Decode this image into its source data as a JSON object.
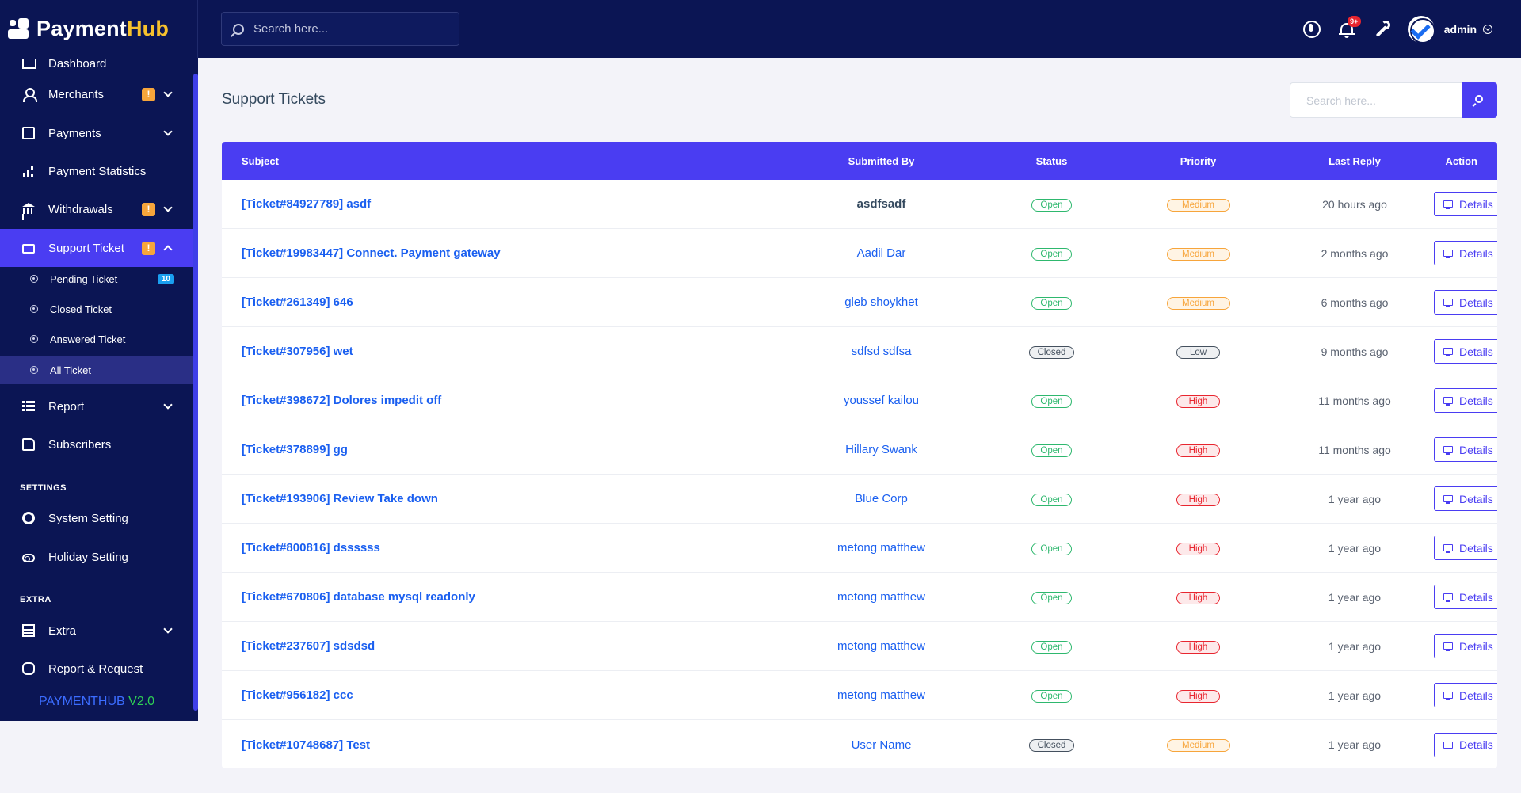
{
  "brand": {
    "name_part1": "Payment",
    "name_part2": "Hub"
  },
  "topbar": {
    "search_placeholder": "Search here...",
    "notification_badge": "9+",
    "admin_name": "admin"
  },
  "sidebar": {
    "items": [
      {
        "label": "Dashboard",
        "icon": "dashboard-icon"
      },
      {
        "label": "Merchants",
        "icon": "person-icon",
        "warn": "!"
      },
      {
        "label": "Payments",
        "icon": "document-icon"
      },
      {
        "label": "Payment Statistics",
        "icon": "bar-chart-icon"
      },
      {
        "label": "Withdrawals",
        "icon": "bank-icon",
        "warn": "!"
      },
      {
        "label": "Support Ticket",
        "icon": "ticket-icon",
        "warn": "!"
      }
    ],
    "sub_items": [
      {
        "label": "Pending Ticket",
        "count": "10"
      },
      {
        "label": "Closed Ticket"
      },
      {
        "label": "Answered Ticket"
      },
      {
        "label": "All Ticket"
      }
    ],
    "items2": [
      {
        "label": "Report",
        "icon": "list-icon"
      },
      {
        "label": "Subscribers",
        "icon": "thumbs-up-icon"
      }
    ],
    "section_settings": "SETTINGS",
    "settings_items": [
      {
        "label": "System Setting",
        "icon": "gear-icon"
      },
      {
        "label": "Holiday Setting",
        "icon": "toggle-icon"
      }
    ],
    "section_extra": "EXTRA",
    "extra_items": [
      {
        "label": "Extra",
        "icon": "table-icon"
      },
      {
        "label": "Report & Request",
        "icon": "bug-icon"
      }
    ],
    "version_name": "PAYMENTHUB",
    "version_number": "V2.0"
  },
  "main": {
    "title": "Support Tickets",
    "search_placeholder": "Search here...",
    "columns": [
      "Subject",
      "Submitted By",
      "Status",
      "Priority",
      "Last Reply",
      "Action"
    ],
    "rows": [
      {
        "subject": "[Ticket#84927789] asdf",
        "by": "asdfsadf",
        "status": "Open",
        "priority": "Medium",
        "last_reply": "20 hours ago",
        "action": "Details"
      },
      {
        "subject": "[Ticket#19983447] Connect. Payment gateway",
        "by": "Aadil Dar",
        "status": "Open",
        "priority": "Medium",
        "last_reply": "2 months ago",
        "action": "Details"
      },
      {
        "subject": "[Ticket#261349] 646",
        "by": "gleb shoykhet",
        "status": "Open",
        "priority": "Medium",
        "last_reply": "6 months ago",
        "action": "Details"
      },
      {
        "subject": "[Ticket#307956] wet",
        "by": "sdfsd sdfsa",
        "status": "Closed",
        "priority": "Low",
        "last_reply": "9 months ago",
        "action": "Details"
      },
      {
        "subject": "[Ticket#398672] Dolores impedit off",
        "by": "youssef kailou",
        "status": "Open",
        "priority": "High",
        "last_reply": "11 months ago",
        "action": "Details"
      },
      {
        "subject": "[Ticket#378899] gg",
        "by": "Hillary Swank",
        "status": "Open",
        "priority": "High",
        "last_reply": "11 months ago",
        "action": "Details"
      },
      {
        "subject": "[Ticket#193906] Review Take down",
        "by": "Blue Corp",
        "status": "Open",
        "priority": "High",
        "last_reply": "1 year ago",
        "action": "Details"
      },
      {
        "subject": "[Ticket#800816] dssssss",
        "by": "metong matthew",
        "status": "Open",
        "priority": "High",
        "last_reply": "1 year ago",
        "action": "Details"
      },
      {
        "subject": "[Ticket#670806] database mysql readonly",
        "by": "metong matthew",
        "status": "Open",
        "priority": "High",
        "last_reply": "1 year ago",
        "action": "Details"
      },
      {
        "subject": "[Ticket#237607] sdsdsd",
        "by": "metong matthew",
        "status": "Open",
        "priority": "High",
        "last_reply": "1 year ago",
        "action": "Details"
      },
      {
        "subject": "[Ticket#956182] ccc",
        "by": "metong matthew",
        "status": "Open",
        "priority": "High",
        "last_reply": "1 year ago",
        "action": "Details"
      },
      {
        "subject": "[Ticket#10748687] Test",
        "by": "User Name",
        "status": "Closed",
        "priority": "Medium",
        "last_reply": "1 year ago",
        "action": "Details"
      }
    ]
  },
  "colors": {
    "navy": "#0b1554",
    "accent": "#4a3df2",
    "link": "#1a5ff0",
    "open": "#2eb86e",
    "high": "#e8252f",
    "medium": "#f7a53b"
  }
}
